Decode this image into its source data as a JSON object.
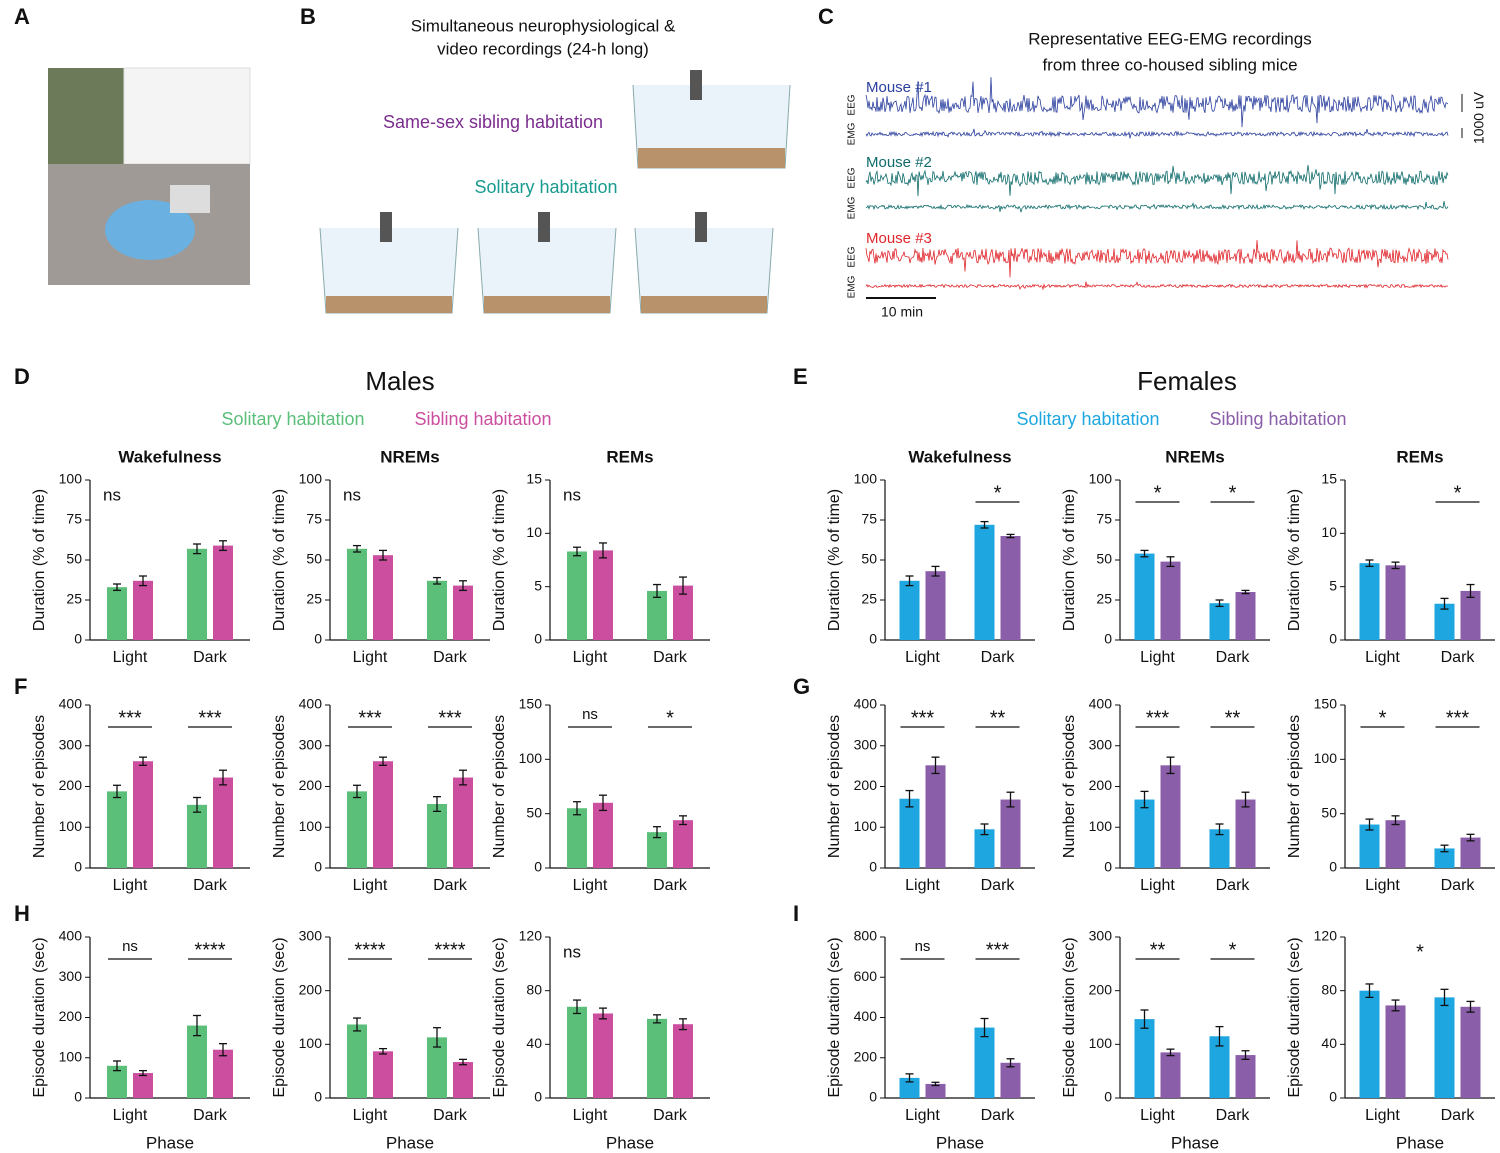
{
  "panel_labels": [
    "A",
    "B",
    "C",
    "D",
    "E",
    "F",
    "G",
    "H",
    "I"
  ],
  "panel_b": {
    "title": [
      "Simultaneous neurophysiological &",
      "video recordings (24-h long)"
    ],
    "sibling": "Same-sex sibling habitation",
    "solitary": "Solitary habitation"
  },
  "panel_c": {
    "title": [
      "Representative EEG-EMG recordings",
      "from three co-housed sibling mice"
    ],
    "mice": [
      "Mouse #1",
      "Mouse #2",
      "Mouse #3"
    ],
    "eeg": "EEG",
    "emg": "EMG",
    "scale_v": "1000 uV",
    "scale_t": "10 min"
  },
  "groups": [
    {
      "title": "Males",
      "legend": [
        "Solitary habitation",
        "Sibling habitation"
      ],
      "colors": [
        "#5bbf7a",
        "#cc4e9f"
      ]
    },
    {
      "title": "Females",
      "legend": [
        "Solitary habitation",
        "Sibling habitation"
      ],
      "colors": [
        "#1ea6e0",
        "#8a5ea8"
      ]
    }
  ],
  "chart_data": [
    {
      "type": "bar",
      "title": "Wakefulness",
      "ylabel": "Duration (% of time)",
      "categories": [
        "Light",
        "Dark"
      ],
      "series": [
        {
          "color": "#5bbf7a",
          "values": [
            33,
            57
          ],
          "errors": [
            2,
            3
          ]
        },
        {
          "color": "#cc4e9f",
          "values": [
            37,
            59
          ],
          "errors": [
            3,
            3
          ]
        }
      ],
      "ylim": [
        0,
        100
      ],
      "yticks": [
        0,
        25,
        50,
        75,
        100
      ],
      "annotation": "ns"
    },
    {
      "type": "bar",
      "title": "NREMs",
      "ylabel": "Duration (% of time)",
      "categories": [
        "Light",
        "Dark"
      ],
      "series": [
        {
          "color": "#5bbf7a",
          "values": [
            57,
            37
          ],
          "errors": [
            2,
            2
          ]
        },
        {
          "color": "#cc4e9f",
          "values": [
            53,
            34
          ],
          "errors": [
            3,
            3
          ]
        }
      ],
      "ylim": [
        0,
        100
      ],
      "yticks": [
        0,
        25,
        50,
        75,
        100
      ],
      "annotation": "ns"
    },
    {
      "type": "bar",
      "title": "REMs",
      "ylabel": "Duration (% of time)",
      "categories": [
        "Light",
        "Dark"
      ],
      "series": [
        {
          "color": "#5bbf7a",
          "values": [
            8.3,
            4.6
          ],
          "errors": [
            0.4,
            0.6
          ]
        },
        {
          "color": "#cc4e9f",
          "values": [
            8.4,
            5.1
          ],
          "errors": [
            0.7,
            0.8
          ]
        }
      ],
      "ylim": [
        0,
        15
      ],
      "yticks": [
        0,
        5,
        10,
        15
      ],
      "annotation": "ns"
    },
    {
      "type": "bar",
      "ylabel": "Number of episodes",
      "categories": [
        "Light",
        "Dark"
      ],
      "series": [
        {
          "color": "#5bbf7a",
          "values": [
            188,
            155
          ],
          "errors": [
            15,
            18
          ]
        },
        {
          "color": "#cc4e9f",
          "values": [
            262,
            222
          ],
          "errors": [
            10,
            18
          ]
        }
      ],
      "ylim": [
        0,
        400
      ],
      "yticks": [
        0,
        100,
        200,
        300,
        400
      ],
      "significance": [
        "***",
        "***"
      ]
    },
    {
      "type": "bar",
      "ylabel": "Number of episodes",
      "categories": [
        "Light",
        "Dark"
      ],
      "series": [
        {
          "color": "#5bbf7a",
          "values": [
            188,
            157
          ],
          "errors": [
            15,
            18
          ]
        },
        {
          "color": "#cc4e9f",
          "values": [
            262,
            222
          ],
          "errors": [
            10,
            18
          ]
        }
      ],
      "ylim": [
        0,
        400
      ],
      "yticks": [
        0,
        100,
        200,
        300,
        400
      ],
      "significance": [
        "***",
        "***"
      ]
    },
    {
      "type": "bar",
      "ylabel": "Number of episodes",
      "categories": [
        "Light",
        "Dark"
      ],
      "series": [
        {
          "color": "#5bbf7a",
          "values": [
            55,
            33
          ],
          "errors": [
            6,
            5
          ]
        },
        {
          "color": "#cc4e9f",
          "values": [
            60,
            44
          ],
          "errors": [
            7,
            4
          ]
        }
      ],
      "ylim": [
        0,
        150
      ],
      "yticks": [
        0,
        50,
        100,
        150
      ],
      "significance": [
        "ns",
        "*"
      ]
    },
    {
      "type": "bar",
      "ylabel": "Episode duration (sec)",
      "xlabel": "Phase",
      "categories": [
        "Light",
        "Dark"
      ],
      "series": [
        {
          "color": "#5bbf7a",
          "values": [
            80,
            180
          ],
          "errors": [
            12,
            25
          ]
        },
        {
          "color": "#cc4e9f",
          "values": [
            62,
            120
          ],
          "errors": [
            6,
            15
          ]
        }
      ],
      "ylim": [
        0,
        400
      ],
      "yticks": [
        0,
        100,
        200,
        300,
        400
      ],
      "significance": [
        "ns",
        "****"
      ]
    },
    {
      "type": "bar",
      "ylabel": "Episode duration (sec)",
      "xlabel": "Phase",
      "categories": [
        "Light",
        "Dark"
      ],
      "series": [
        {
          "color": "#5bbf7a",
          "values": [
            137,
            113
          ],
          "errors": [
            12,
            18
          ]
        },
        {
          "color": "#cc4e9f",
          "values": [
            87,
            67
          ],
          "errors": [
            5,
            5
          ]
        }
      ],
      "ylim": [
        0,
        300
      ],
      "yticks": [
        0,
        100,
        200,
        300
      ],
      "significance": [
        "****",
        "****"
      ]
    },
    {
      "type": "bar",
      "ylabel": "Episode duration (sec)",
      "xlabel": "Phase",
      "categories": [
        "Light",
        "Dark"
      ],
      "series": [
        {
          "color": "#5bbf7a",
          "values": [
            68,
            59
          ],
          "errors": [
            5,
            3
          ]
        },
        {
          "color": "#cc4e9f",
          "values": [
            63,
            55
          ],
          "errors": [
            4,
            4
          ]
        }
      ],
      "ylim": [
        0,
        120
      ],
      "yticks": [
        0,
        40,
        80,
        120
      ],
      "annotation": "ns"
    },
    {
      "type": "bar",
      "title": "Wakefulness",
      "ylabel": "Duration (% of time)",
      "categories": [
        "Light",
        "Dark"
      ],
      "series": [
        {
          "color": "#1ea6e0",
          "values": [
            37,
            72
          ],
          "errors": [
            3,
            2
          ]
        },
        {
          "color": "#8a5ea8",
          "values": [
            43,
            65
          ],
          "errors": [
            3,
            1
          ]
        }
      ],
      "ylim": [
        0,
        100
      ],
      "yticks": [
        0,
        25,
        50,
        75,
        100
      ],
      "significance": [
        null,
        "*"
      ]
    },
    {
      "type": "bar",
      "title": "NREMs",
      "ylabel": "Duration (% of time)",
      "categories": [
        "Light",
        "Dark"
      ],
      "series": [
        {
          "color": "#1ea6e0",
          "values": [
            54,
            23
          ],
          "errors": [
            2,
            2
          ]
        },
        {
          "color": "#8a5ea8",
          "values": [
            49,
            30
          ],
          "errors": [
            3,
            1
          ]
        }
      ],
      "ylim": [
        0,
        100
      ],
      "yticks": [
        0,
        25,
        50,
        75,
        100
      ],
      "significance": [
        "*",
        "*"
      ]
    },
    {
      "type": "bar",
      "title": "REMs",
      "ylabel": "Duration (% of time)",
      "categories": [
        "Light",
        "Dark"
      ],
      "series": [
        {
          "color": "#1ea6e0",
          "values": [
            7.2,
            3.4
          ],
          "errors": [
            0.3,
            0.5
          ]
        },
        {
          "color": "#8a5ea8",
          "values": [
            7.0,
            4.6
          ],
          "errors": [
            0.3,
            0.6
          ]
        }
      ],
      "ylim": [
        0,
        15
      ],
      "yticks": [
        0,
        5,
        10,
        15
      ],
      "significance": [
        null,
        "*"
      ]
    },
    {
      "type": "bar",
      "ylabel": "Number of episodes",
      "categories": [
        "Light",
        "Dark"
      ],
      "series": [
        {
          "color": "#1ea6e0",
          "values": [
            170,
            95
          ],
          "errors": [
            20,
            13
          ]
        },
        {
          "color": "#8a5ea8",
          "values": [
            252,
            168
          ],
          "errors": [
            20,
            18
          ]
        }
      ],
      "ylim": [
        0,
        400
      ],
      "yticks": [
        0,
        100,
        200,
        300,
        400
      ],
      "significance": [
        "***",
        "**"
      ]
    },
    {
      "type": "bar",
      "ylabel": "Number of episodes",
      "categories": [
        "Light",
        "Dark"
      ],
      "series": [
        {
          "color": "#1ea6e0",
          "values": [
            168,
            95
          ],
          "errors": [
            20,
            13
          ]
        },
        {
          "color": "#8a5ea8",
          "values": [
            252,
            168
          ],
          "errors": [
            20,
            18
          ]
        }
      ],
      "ylim": [
        0,
        400
      ],
      "yticks": [
        0,
        100,
        200,
        300,
        400
      ],
      "significance": [
        "***",
        "**"
      ]
    },
    {
      "type": "bar",
      "ylabel": "Number of episodes",
      "categories": [
        "Light",
        "Dark"
      ],
      "series": [
        {
          "color": "#1ea6e0",
          "values": [
            40,
            18
          ],
          "errors": [
            5,
            3
          ]
        },
        {
          "color": "#8a5ea8",
          "values": [
            44,
            28
          ],
          "errors": [
            4,
            3
          ]
        }
      ],
      "ylim": [
        0,
        150
      ],
      "yticks": [
        0,
        50,
        100,
        150
      ],
      "significance": [
        "*",
        "***"
      ]
    },
    {
      "type": "bar",
      "ylabel": "Episode duration (sec)",
      "xlabel": "Phase",
      "categories": [
        "Light",
        "Dark"
      ],
      "series": [
        {
          "color": "#1ea6e0",
          "values": [
            100,
            350
          ],
          "errors": [
            20,
            45
          ]
        },
        {
          "color": "#8a5ea8",
          "values": [
            70,
            175
          ],
          "errors": [
            8,
            20
          ]
        }
      ],
      "ylim": [
        0,
        800
      ],
      "yticks": [
        0,
        200,
        400,
        600,
        800
      ],
      "significance": [
        "ns",
        "***"
      ]
    },
    {
      "type": "bar",
      "ylabel": "Episode duration (sec)",
      "xlabel": "Phase",
      "categories": [
        "Light",
        "Dark"
      ],
      "series": [
        {
          "color": "#1ea6e0",
          "values": [
            147,
            115
          ],
          "errors": [
            17,
            18
          ]
        },
        {
          "color": "#8a5ea8",
          "values": [
            85,
            80
          ],
          "errors": [
            6,
            8
          ]
        }
      ],
      "ylim": [
        0,
        300
      ],
      "yticks": [
        0,
        100,
        200,
        300
      ],
      "significance": [
        "**",
        "*"
      ]
    },
    {
      "type": "bar",
      "ylabel": "Episode duration (sec)",
      "xlabel": "Phase",
      "categories": [
        "Light",
        "Dark"
      ],
      "series": [
        {
          "color": "#1ea6e0",
          "values": [
            80,
            75
          ],
          "errors": [
            5,
            6
          ]
        },
        {
          "color": "#8a5ea8",
          "values": [
            69,
            68
          ],
          "errors": [
            4,
            4
          ]
        }
      ],
      "ylim": [
        0,
        120
      ],
      "yticks": [
        0,
        40,
        80,
        120
      ],
      "annotation": "*"
    }
  ]
}
